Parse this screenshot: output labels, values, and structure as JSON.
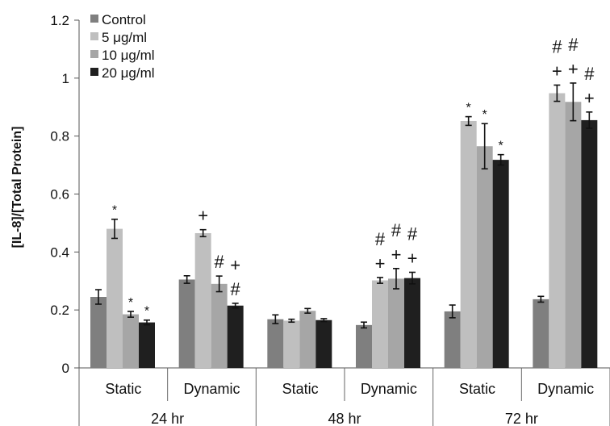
{
  "chart_data": {
    "type": "bar",
    "title": "",
    "xlabel": "",
    "ylabel": "[IL-8]/[Total Protein]",
    "ylim": [
      0,
      1.2
    ],
    "yticks": [
      "0",
      "0.2",
      "0.4",
      "0.6",
      "0.8",
      "1",
      "1.2"
    ],
    "grid": false,
    "legend_position": "top-left",
    "groups": [
      "24 hr",
      "48 hr",
      "72 hr"
    ],
    "categories": [
      "Static",
      "Dynamic",
      "Static",
      "Dynamic",
      "Static",
      "Dynamic"
    ],
    "series": [
      {
        "name": "Control",
        "color": "#7f7f7f",
        "values": [
          0.245,
          0.305,
          0.168,
          0.148,
          0.195,
          0.237
        ],
        "errors": [
          0.025,
          0.013,
          0.015,
          0.01,
          0.022,
          0.01
        ],
        "annotations": [
          "",
          "",
          "",
          "",
          "",
          ""
        ]
      },
      {
        "name": "5 μg/ml",
        "color": "#bfbfbf",
        "values": [
          0.48,
          0.465,
          0.163,
          0.302,
          0.852,
          0.948
        ],
        "errors": [
          0.033,
          0.012,
          0.005,
          0.01,
          0.015,
          0.028
        ],
        "annotations": [
          "*",
          "+",
          "",
          "+\n#",
          "*",
          "+\n#"
        ]
      },
      {
        "name": "10 μg/ml",
        "color": "#a6a6a6",
        "values": [
          0.185,
          0.29,
          0.197,
          0.308,
          0.765,
          0.918
        ],
        "errors": [
          0.01,
          0.027,
          0.008,
          0.035,
          0.078,
          0.065
        ],
        "annotations": [
          "*",
          "#",
          "",
          "+\n#",
          "*",
          "+\n#"
        ]
      },
      {
        "name": "20 μg/ml",
        "color": "#1f1f1f",
        "values": [
          0.157,
          0.215,
          0.165,
          0.31,
          0.718,
          0.855
        ],
        "errors": [
          0.008,
          0.008,
          0.005,
          0.02,
          0.018,
          0.028
        ],
        "annotations": [
          "*",
          "#\n+",
          "",
          "+\n#",
          "*",
          "+\n#"
        ]
      }
    ]
  }
}
